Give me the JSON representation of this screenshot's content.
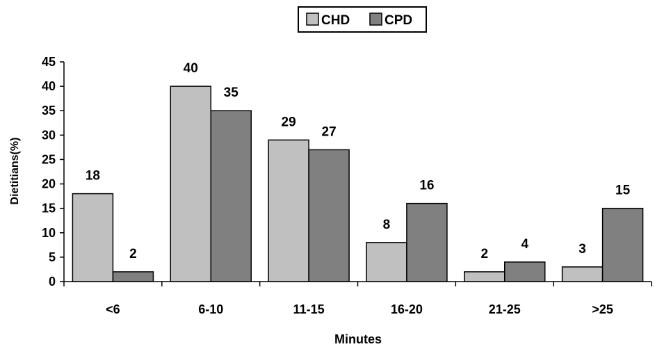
{
  "chart_data": {
    "type": "bar",
    "title": "",
    "xlabel": "Minutes",
    "ylabel": "Dietitians(%)",
    "ylim": [
      0,
      45
    ],
    "yticks": [
      0,
      5,
      10,
      15,
      20,
      25,
      30,
      35,
      40,
      45
    ],
    "categories": [
      "<6",
      "6-10",
      "11-15",
      "16-20",
      "21-25",
      ">25"
    ],
    "series": [
      {
        "name": "CHD",
        "values": [
          18,
          40,
          29,
          8,
          2,
          3
        ],
        "data_labels": [
          "18",
          "40",
          "29",
          "8",
          "2",
          "3"
        ],
        "color": "#c0c0c0"
      },
      {
        "name": "CPD",
        "values": [
          2,
          35,
          27,
          16,
          4,
          15
        ],
        "data_labels": [
          "2",
          "35",
          "27",
          "16",
          "4",
          "15"
        ],
        "color": "#808080"
      }
    ],
    "grid": false,
    "legend_position": "top-center"
  }
}
